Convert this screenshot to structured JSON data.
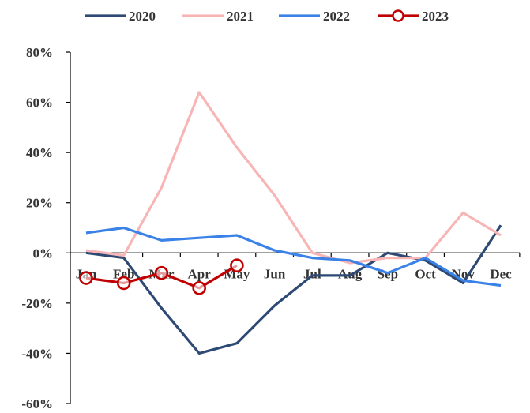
{
  "chart_data": {
    "type": "line",
    "categories": [
      "Jan",
      "Feb",
      "Mar",
      "Apr",
      "May",
      "Jun",
      "Jul",
      "Aug",
      "Sep",
      "Oct",
      "Nov",
      "Dec"
    ],
    "series": [
      {
        "name": "2020",
        "color": "#2e4a74",
        "marker": false,
        "values": [
          0,
          -2,
          -22,
          -40,
          -36,
          -21,
          -9,
          -9,
          0,
          -3,
          -12,
          11
        ]
      },
      {
        "name": "2021",
        "color": "#f7b6b5",
        "marker": false,
        "values": [
          1,
          -1,
          26,
          64,
          42,
          23,
          0,
          -4,
          -2,
          -2,
          16,
          7
        ]
      },
      {
        "name": "2022",
        "color": "#3b82e8",
        "marker": false,
        "values": [
          8,
          10,
          5,
          6,
          7,
          1,
          -2,
          -3,
          -8,
          -2,
          -11,
          -13
        ]
      },
      {
        "name": "2023",
        "color": "#c00000",
        "marker": true,
        "values": [
          -10,
          -12,
          -8,
          -14,
          -5,
          null,
          null,
          null,
          null,
          null,
          null,
          null
        ]
      }
    ],
    "y_ticks": [
      "80%",
      "60%",
      "40%",
      "20%",
      "0%",
      "-20%",
      "-40%",
      "-60%"
    ],
    "ylim": [
      -60,
      80
    ],
    "y_step": 20,
    "grid": false,
    "legend_position": "top"
  }
}
